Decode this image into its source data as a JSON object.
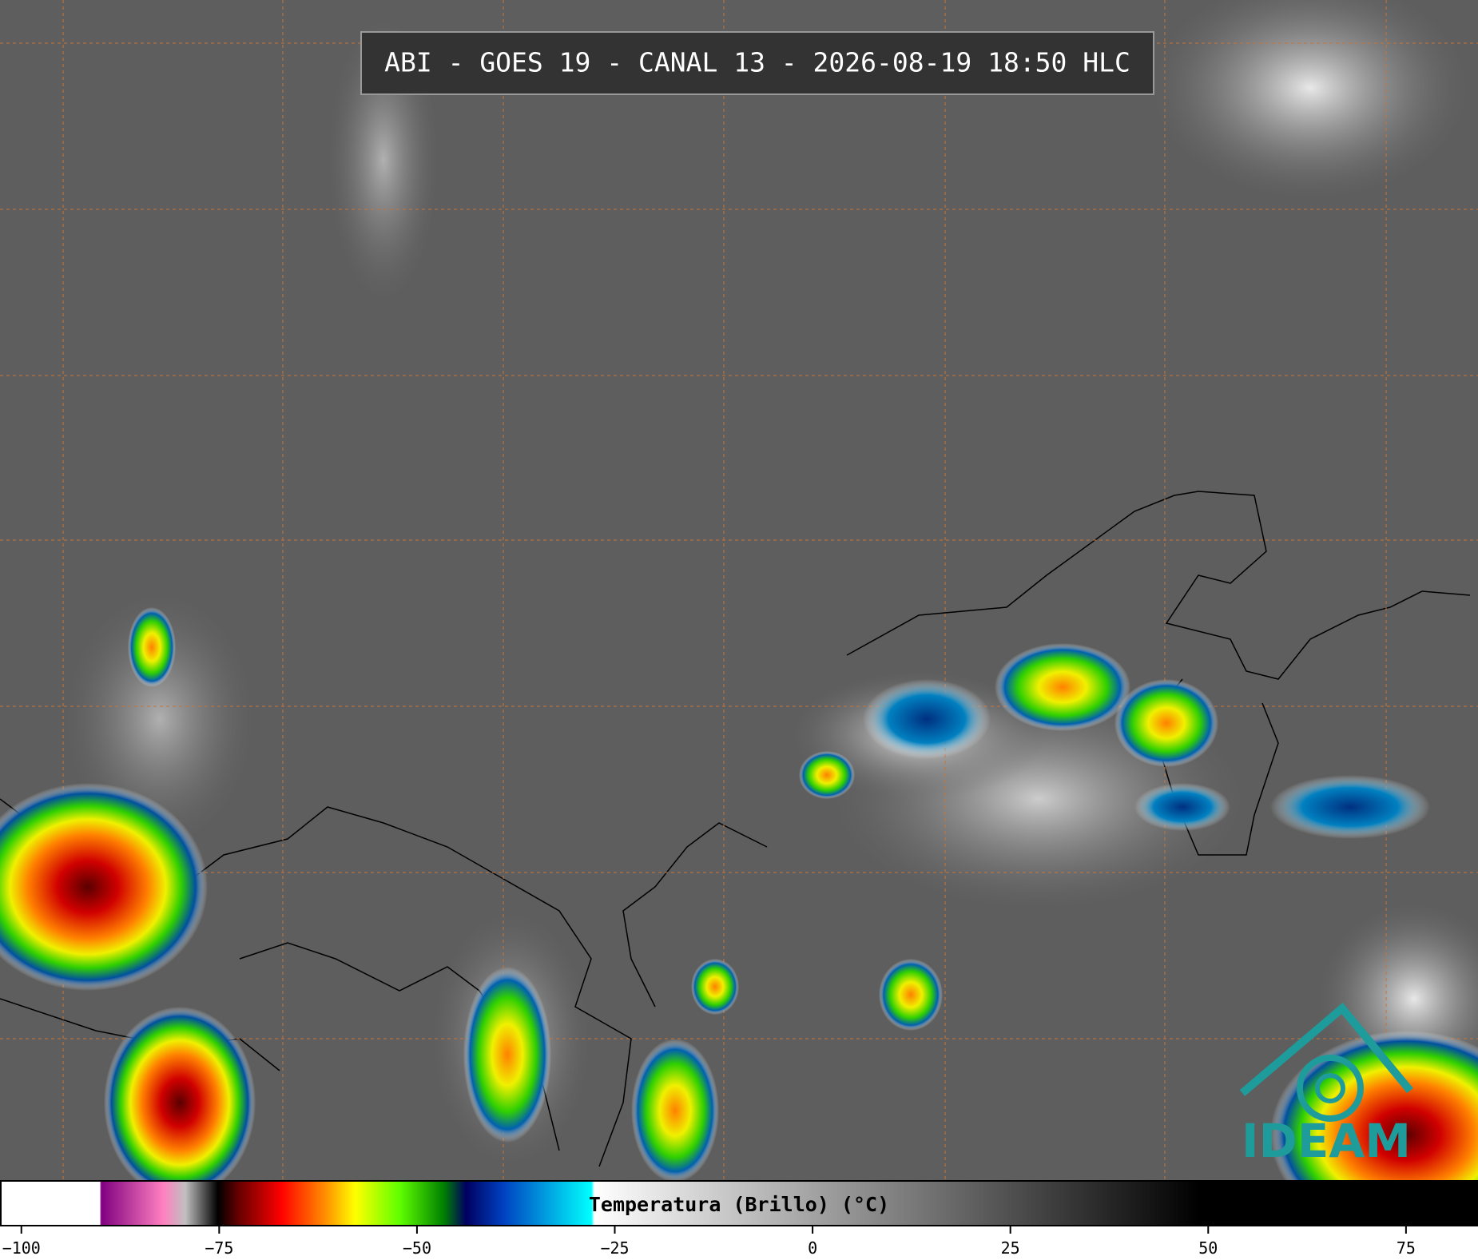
{
  "header": {
    "title": "ABI - GOES 19 - CANAL 13 - 2026-08-19 18:50 HLC"
  },
  "colorbar": {
    "label": "Temperatura (Brillo) (°C)",
    "lim": [
      -102.6,
      84
    ],
    "ticks": [
      {
        "value": -100,
        "label": "−100"
      },
      {
        "value": -75,
        "label": "−75"
      },
      {
        "value": -50,
        "label": "−50"
      },
      {
        "value": -25,
        "label": "−25"
      },
      0,
      25,
      50,
      75
    ]
  },
  "logo": {
    "text": "IDEAM"
  }
}
